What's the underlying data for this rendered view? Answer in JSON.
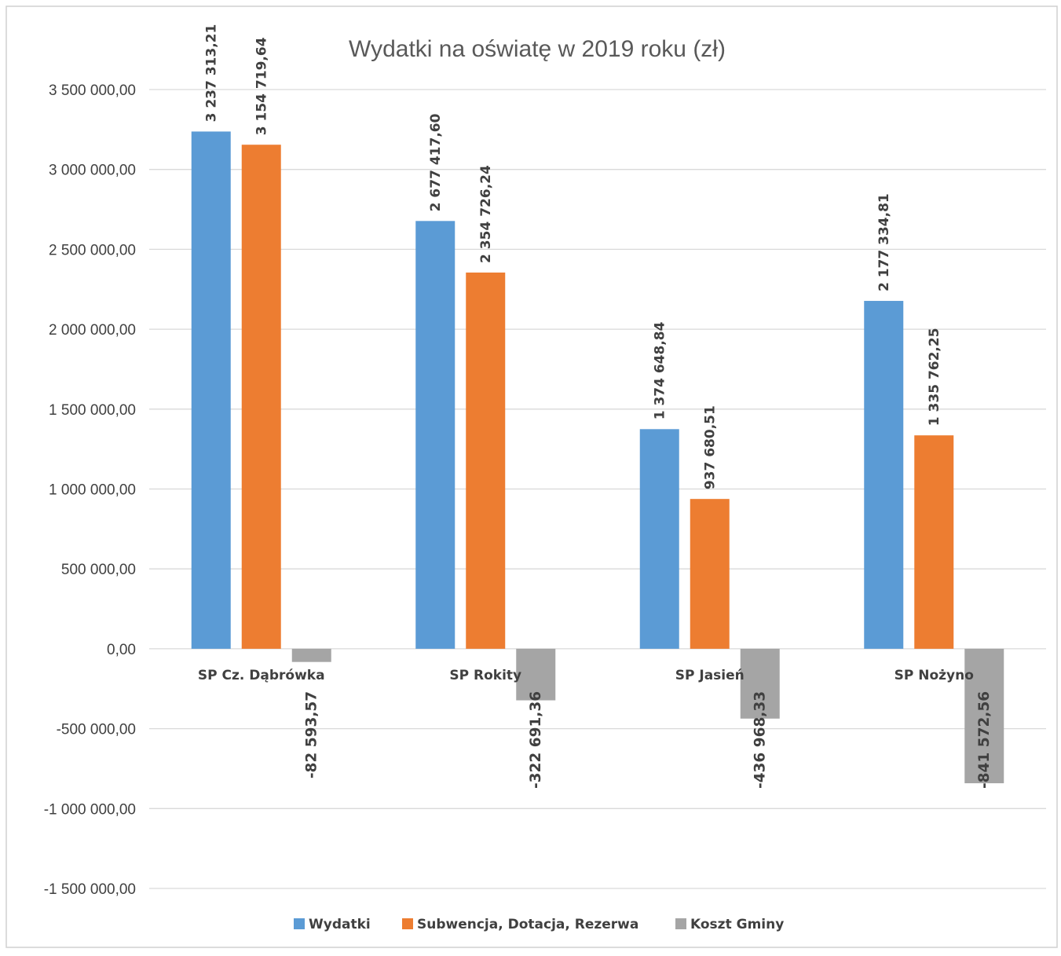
{
  "chart_data": {
    "type": "bar",
    "title": "Wydatki na oświatę w 2019 roku  (zł)",
    "xlabel": "",
    "ylabel": "",
    "ylim": [
      -1500000,
      3500000
    ],
    "y_ticks": [
      3500000,
      3000000,
      2500000,
      2000000,
      1500000,
      1000000,
      500000,
      0,
      -500000,
      -1000000,
      -1500000
    ],
    "y_tick_labels": [
      "3 500 000,00",
      "3 000 000,00",
      "2 500 000,00",
      "2 000 000,00",
      "1 500 000,00",
      "1 000 000,00",
      "500 000,00",
      "0,00",
      "-500 000,00",
      "-1 000 000,00",
      "-1 500 000,00"
    ],
    "categories": [
      "SP Cz. Dąbrówka",
      "SP Rokity",
      "SP Jasień",
      "SP Nożyno"
    ],
    "series": [
      {
        "name": "Wydatki",
        "color": "#5b9bd5",
        "values": [
          3237313.21,
          2677417.6,
          1374648.84,
          2177334.81
        ],
        "labels": [
          "3 237 313,21",
          "2 677 417,60",
          "1 374 648,84",
          "2 177 334,81"
        ]
      },
      {
        "name": "Subwencja, Dotacja, Rezerwa",
        "color": "#ed7d31",
        "values": [
          3154719.64,
          2354726.24,
          937680.51,
          1335762.25
        ],
        "labels": [
          "3 154 719,64",
          "2 354 726,24",
          "937 680,51",
          "1 335 762,25"
        ]
      },
      {
        "name": "Koszt Gminy",
        "color": "#a5a5a5",
        "values": [
          -82593.57,
          -322691.36,
          -436968.33,
          -841572.56
        ],
        "labels": [
          "-82 593,57",
          "-322 691,36",
          "-436 968,33",
          "-841 572,56"
        ]
      }
    ],
    "grid": true,
    "legend_position": "bottom",
    "data_labels": "rotated-vertical"
  }
}
